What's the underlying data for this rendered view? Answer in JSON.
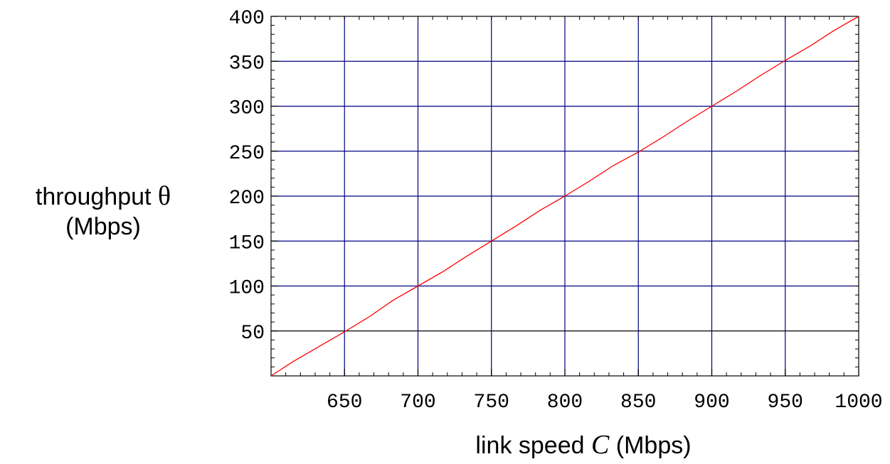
{
  "chart_data": {
    "type": "line",
    "title": "",
    "xlabel": {
      "prefix": "link speed ",
      "symbol": "C",
      "suffix": " (Mbps)"
    },
    "ylabel": {
      "line1_prefix": "throughput ",
      "line1_symbol": "θ",
      "line2": "(Mbps)"
    },
    "xlim": [
      600,
      1000
    ],
    "ylim": [
      0,
      400
    ],
    "xticks": [
      650,
      700,
      750,
      800,
      850,
      900,
      950,
      1000
    ],
    "yticks": [
      50,
      100,
      150,
      200,
      250,
      300,
      350,
      400
    ],
    "grid": true,
    "legend": "none",
    "series": [
      {
        "color": "#ff0000",
        "x": [
          600,
          615,
          633,
          650,
          667,
          683,
          700,
          717,
          733,
          750,
          767,
          783,
          800,
          817,
          833,
          850,
          867,
          883,
          900,
          917,
          933,
          950,
          967,
          983,
          1000
        ],
        "y": [
          0,
          16,
          33,
          49,
          66,
          84,
          100,
          116,
          133,
          150,
          167,
          184,
          200,
          217,
          234,
          249,
          266,
          283,
          300,
          317,
          334,
          351,
          367,
          384,
          400
        ]
      }
    ],
    "colors": {
      "grid": "#000080",
      "baseline_grid": "#000000",
      "axis": "#000000"
    }
  }
}
